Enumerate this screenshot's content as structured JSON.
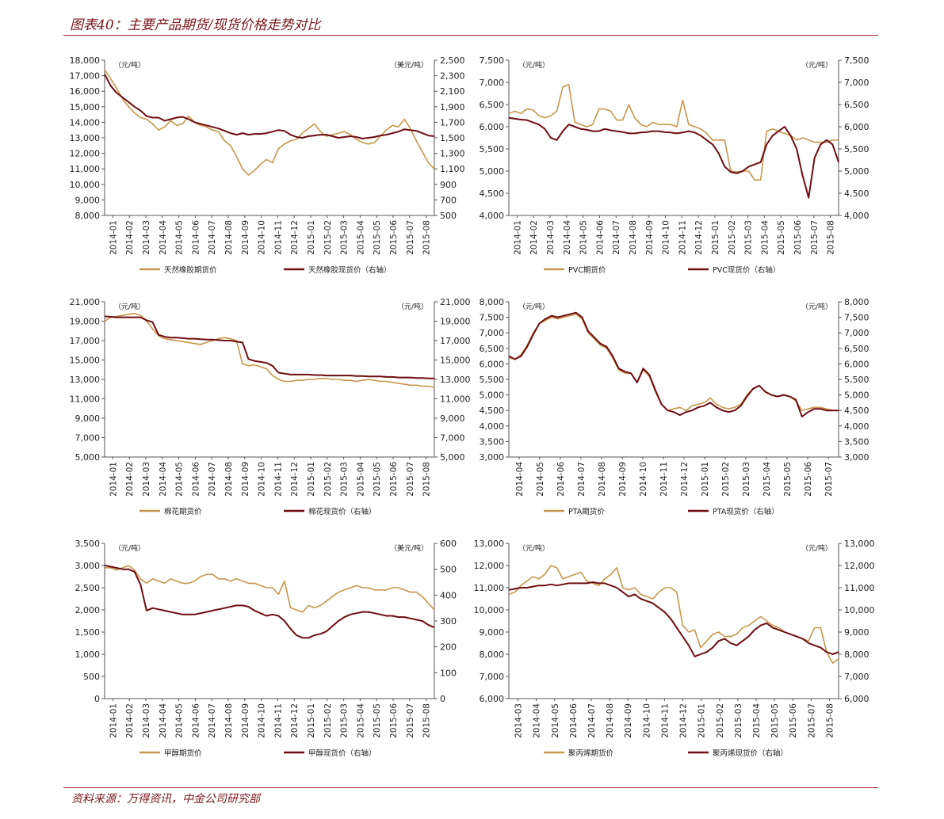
{
  "title": "图表40：主要产品期货/现货价格走势对比",
  "source": "资料来源：万得资讯，中金公司研究部",
  "colors": {
    "futures": "#c8964b",
    "spot": "#6e0d12",
    "axis": "#555555",
    "accent": "#a0282c"
  },
  "chart_data": [
    {
      "type": "line",
      "left_unit": "（元/吨）",
      "right_unit": "（美元/吨）",
      "left_axis": {
        "min": 8000,
        "max": 18000,
        "step": 1000
      },
      "right_axis": {
        "min": 500,
        "max": 2500,
        "step": 200
      },
      "x_labels": [
        "2014-01",
        "2014-02",
        "2014-03",
        "2014-04",
        "2014-05",
        "2014-06",
        "2014-07",
        "2014-08",
        "2014-09",
        "2014-10",
        "2014-11",
        "2014-12",
        "2015-01",
        "2015-02",
        "2015-03",
        "2015-04",
        "2015-05",
        "2015-06",
        "2015-07",
        "2015-08"
      ],
      "series": [
        {
          "name": "天然橡胶期货价",
          "axis": "left",
          "color": "#c8964b",
          "values": [
            17400,
            16800,
            16200,
            15500,
            15000,
            14600,
            14300,
            14200,
            13900,
            13500,
            13700,
            14100,
            13800,
            13900,
            14400,
            14000,
            13800,
            13700,
            13500,
            13400,
            12800,
            12500,
            11800,
            11000,
            10600,
            10900,
            11300,
            11600,
            11400,
            12300,
            12600,
            12800,
            12900,
            13300,
            13600,
            13900,
            13400,
            13100,
            13200,
            13300,
            13400,
            13200,
            12900,
            12700,
            12600,
            12700,
            13100,
            13500,
            13800,
            13700,
            14200,
            13600,
            12800,
            12100,
            11400,
            11000
          ]
        },
        {
          "name": "天然橡胶现货价（右轴）",
          "axis": "right",
          "color": "#6e0d12",
          "values": [
            2320,
            2170,
            2080,
            2020,
            1960,
            1900,
            1850,
            1780,
            1760,
            1760,
            1720,
            1740,
            1760,
            1770,
            1740,
            1700,
            1680,
            1660,
            1640,
            1620,
            1590,
            1560,
            1540,
            1560,
            1540,
            1550,
            1550,
            1560,
            1580,
            1600,
            1590,
            1540,
            1510,
            1500,
            1520,
            1530,
            1540,
            1540,
            1520,
            1500,
            1510,
            1520,
            1510,
            1490,
            1500,
            1510,
            1530,
            1540,
            1560,
            1580,
            1610,
            1600,
            1590,
            1560,
            1530,
            1520
          ]
        }
      ]
    },
    {
      "type": "line",
      "left_unit": "（元/吨）",
      "right_unit": "（元/吨）",
      "left_axis": {
        "min": 4000,
        "max": 7500,
        "step": 500
      },
      "right_axis": {
        "min": 4000,
        "max": 7500,
        "step": 500
      },
      "x_labels": [
        "2014-01",
        "2014-02",
        "2014-03",
        "2014-04",
        "2014-05",
        "2014-06",
        "2014-07",
        "2014-08",
        "2014-09",
        "2014-10",
        "2014-11",
        "2014-12",
        "2015-01",
        "2015-02",
        "2015-03",
        "2015-04",
        "2015-05",
        "2015-06",
        "2015-07",
        "2015-08"
      ],
      "series": [
        {
          "name": "PVC期货价",
          "axis": "left",
          "color": "#c8964b",
          "values": [
            6300,
            6350,
            6300,
            6400,
            6380,
            6250,
            6200,
            6250,
            6350,
            6900,
            6950,
            6100,
            6050,
            6000,
            6050,
            6400,
            6400,
            6350,
            6150,
            6150,
            6500,
            6200,
            6050,
            6000,
            6100,
            6050,
            6050,
            6050,
            6000,
            6600,
            6050,
            6000,
            5950,
            5850,
            5700,
            5700,
            5700,
            5000,
            4980,
            5000,
            5000,
            4800,
            4800,
            5900,
            5950,
            5900,
            5850,
            5800,
            5700,
            5750,
            5700,
            5650,
            5650,
            5650,
            5700,
            5700
          ]
        },
        {
          "name": "PVC现货价（右轴）",
          "axis": "right",
          "color": "#6e0d12",
          "values": [
            6200,
            6180,
            6160,
            6150,
            6100,
            6050,
            5950,
            5750,
            5700,
            5900,
            6050,
            6000,
            5950,
            5930,
            5900,
            5900,
            5950,
            5920,
            5900,
            5880,
            5850,
            5850,
            5870,
            5880,
            5900,
            5900,
            5880,
            5870,
            5850,
            5870,
            5900,
            5870,
            5800,
            5700,
            5600,
            5400,
            5100,
            4980,
            4950,
            5000,
            5100,
            5150,
            5200,
            5600,
            5800,
            5900,
            6000,
            5800,
            5500,
            4900,
            4400,
            5300,
            5600,
            5700,
            5600,
            5200
          ]
        }
      ]
    },
    {
      "type": "line",
      "left_unit": "（元/吨）",
      "right_unit": "（元/吨）",
      "left_axis": {
        "min": 5000,
        "max": 21000,
        "step": 2000
      },
      "right_axis": {
        "min": 5000,
        "max": 21000,
        "step": 2000
      },
      "x_labels": [
        "2014-01",
        "2014-02",
        "2014-03",
        "2014-04",
        "2014-05",
        "2014-06",
        "2014-07",
        "2014-08",
        "2014-09",
        "2014-10",
        "2014-11",
        "2014-12",
        "2015-01",
        "2015-02",
        "2015-03",
        "2015-04",
        "2015-05",
        "2015-06",
        "2015-07",
        "2015-08"
      ],
      "series": [
        {
          "name": "棉花期货价",
          "axis": "left",
          "color": "#c8964b",
          "values": [
            19000,
            19400,
            19500,
            19600,
            19700,
            19800,
            19600,
            19000,
            18200,
            17500,
            17200,
            17100,
            17000,
            16900,
            16800,
            16700,
            16600,
            16800,
            17000,
            17200,
            17300,
            17200,
            17000,
            14600,
            14400,
            14500,
            14300,
            14100,
            13400,
            13000,
            12800,
            12800,
            12900,
            12900,
            13000,
            13000,
            13100,
            13100,
            13000,
            13000,
            12900,
            12900,
            12800,
            12900,
            13000,
            12900,
            12800,
            12800,
            12700,
            12600,
            12500,
            12400,
            12400,
            12300,
            12300,
            12200
          ]
        },
        {
          "name": "棉花现货价（右轴）",
          "axis": "right",
          "color": "#6e0d12",
          "values": [
            19500,
            19450,
            19400,
            19400,
            19400,
            19400,
            19400,
            19100,
            18900,
            17600,
            17400,
            17300,
            17300,
            17250,
            17200,
            17200,
            17150,
            17100,
            17100,
            17050,
            17000,
            17000,
            16900,
            16800,
            15100,
            14900,
            14800,
            14700,
            14400,
            13700,
            13600,
            13500,
            13500,
            13500,
            13500,
            13450,
            13450,
            13400,
            13400,
            13400,
            13400,
            13400,
            13350,
            13350,
            13300,
            13300,
            13300,
            13250,
            13250,
            13200,
            13200,
            13200,
            13150,
            13150,
            13100,
            13100
          ]
        }
      ]
    },
    {
      "type": "line",
      "left_unit": "（元/吨）",
      "right_unit": "（元/吨）",
      "left_axis": {
        "min": 3000,
        "max": 8000,
        "step": 500
      },
      "right_axis": {
        "min": 3000,
        "max": 8000,
        "step": 500
      },
      "x_labels": [
        "2014-04",
        "2014-05",
        "2014-06",
        "2014-07",
        "2014-08",
        "2014-09",
        "2014-10",
        "2014-11",
        "2014-12",
        "2015-01",
        "2015-02",
        "2015-03",
        "2015-04",
        "2015-05",
        "2015-06",
        "2015-07"
      ],
      "series": [
        {
          "name": "PTA期货价",
          "axis": "left",
          "color": "#c8964b",
          "values": [
            6200,
            6150,
            6300,
            6600,
            7000,
            7300,
            7400,
            7500,
            7450,
            7500,
            7550,
            7600,
            7450,
            7000,
            6800,
            6600,
            6500,
            6200,
            5800,
            5700,
            5700,
            5400,
            5800,
            5600,
            5100,
            4700,
            4500,
            4550,
            4600,
            4500,
            4650,
            4700,
            4750,
            4900,
            4700,
            4600,
            4550,
            4600,
            4700,
            5000,
            5200,
            5300,
            5100,
            5000,
            4950,
            5000,
            4950,
            4800,
            4500,
            4550,
            4600,
            4600,
            4550,
            4500,
            4500
          ]
        },
        {
          "name": "PTA现货价（右轴）",
          "axis": "right",
          "color": "#6e0d12",
          "values": [
            6250,
            6150,
            6250,
            6550,
            6950,
            7300,
            7450,
            7550,
            7500,
            7550,
            7600,
            7650,
            7500,
            7050,
            6850,
            6650,
            6550,
            6250,
            5850,
            5750,
            5700,
            5400,
            5850,
            5650,
            5150,
            4700,
            4500,
            4450,
            4350,
            4450,
            4500,
            4600,
            4650,
            4750,
            4600,
            4500,
            4450,
            4500,
            4650,
            4950,
            5200,
            5300,
            5100,
            5000,
            4950,
            5000,
            4950,
            4850,
            4300,
            4450,
            4550,
            4550,
            4500,
            4500,
            4500
          ]
        }
      ]
    },
    {
      "type": "line",
      "left_unit": "（元/吨）",
      "right_unit": "（美元/吨）",
      "left_axis": {
        "min": 0,
        "max": 3500,
        "step": 500
      },
      "right_axis": {
        "min": 0,
        "max": 600,
        "step": 100
      },
      "x_labels": [
        "2014-01",
        "2014-02",
        "2014-03",
        "2014-04",
        "2014-05",
        "2014-06",
        "2014-07",
        "2014-08",
        "2014-09",
        "2014-10",
        "2014-11",
        "2014-12",
        "2015-01",
        "2015-02",
        "2015-03",
        "2015-04",
        "2015-05",
        "2015-06",
        "2015-07",
        "2015-08"
      ],
      "series": [
        {
          "name": "甲醇期货价",
          "axis": "left",
          "color": "#c8964b",
          "values": [
            2950,
            2950,
            2900,
            2950,
            3000,
            2900,
            2700,
            2600,
            2700,
            2650,
            2600,
            2700,
            2650,
            2600,
            2600,
            2650,
            2750,
            2800,
            2800,
            2700,
            2700,
            2650,
            2700,
            2650,
            2600,
            2600,
            2550,
            2500,
            2500,
            2350,
            2650,
            2050,
            2000,
            1950,
            2100,
            2050,
            2100,
            2200,
            2300,
            2400,
            2450,
            2500,
            2550,
            2500,
            2500,
            2450,
            2450,
            2450,
            2500,
            2500,
            2450,
            2400,
            2400,
            2300,
            2150,
            2000
          ]
        },
        {
          "name": "甲醇现货价（右轴）",
          "axis": "right",
          "color": "#6e0d12",
          "values": [
            515,
            510,
            505,
            500,
            500,
            490,
            440,
            340,
            350,
            345,
            340,
            335,
            330,
            325,
            325,
            325,
            330,
            335,
            340,
            345,
            350,
            355,
            360,
            360,
            355,
            340,
            330,
            320,
            325,
            320,
            300,
            270,
            245,
            235,
            235,
            245,
            250,
            260,
            280,
            300,
            315,
            325,
            330,
            335,
            335,
            330,
            325,
            320,
            320,
            315,
            315,
            310,
            305,
            300,
            285,
            275
          ]
        }
      ]
    },
    {
      "type": "line",
      "left_unit": "（元/吨）",
      "right_unit": "（元/吨）",
      "left_axis": {
        "min": 6000,
        "max": 13000,
        "step": 1000
      },
      "right_axis": {
        "min": 6000,
        "max": 13000,
        "step": 1000
      },
      "x_labels": [
        "2014-03",
        "2014-04",
        "2014-05",
        "2014-06",
        "2014-07",
        "2014-08",
        "2014-09",
        "2014-10",
        "2014-11",
        "2014-12",
        "2015-01",
        "2015-02",
        "2015-03",
        "2015-04",
        "2015-05",
        "2015-06",
        "2015-07",
        "2015-08"
      ],
      "series": [
        {
          "name": "聚丙烯期货价",
          "axis": "left",
          "color": "#c8964b",
          "values": [
            10700,
            10800,
            11100,
            11300,
            11500,
            11400,
            11600,
            12000,
            11900,
            11400,
            11500,
            11600,
            11700,
            11300,
            11200,
            11100,
            11400,
            11600,
            11900,
            11000,
            10900,
            11000,
            10700,
            10600,
            10500,
            10800,
            11000,
            11000,
            10800,
            9300,
            9000,
            9100,
            8300,
            8600,
            8900,
            9000,
            8800,
            8800,
            8900,
            9200,
            9300,
            9500,
            9700,
            9500,
            9300,
            9200,
            9000,
            8900,
            8800,
            8700,
            8600,
            9200,
            9200,
            8100,
            7600,
            7800
          ]
        },
        {
          "name": "聚丙烯现货价（右轴）",
          "axis": "right",
          "color": "#6e0d12",
          "values": [
            10900,
            10950,
            11000,
            11000,
            11050,
            11100,
            11100,
            11150,
            11100,
            11150,
            11200,
            11200,
            11200,
            11200,
            11250,
            11200,
            11200,
            11100,
            11000,
            10800,
            10600,
            10700,
            10500,
            10400,
            10300,
            10100,
            9900,
            9600,
            9200,
            8800,
            8400,
            7900,
            8000,
            8100,
            8300,
            8600,
            8700,
            8500,
            8400,
            8600,
            8800,
            9100,
            9300,
            9400,
            9200,
            9100,
            9000,
            8900,
            8800,
            8700,
            8500,
            8400,
            8300,
            8100,
            8000,
            8100
          ]
        }
      ]
    }
  ]
}
